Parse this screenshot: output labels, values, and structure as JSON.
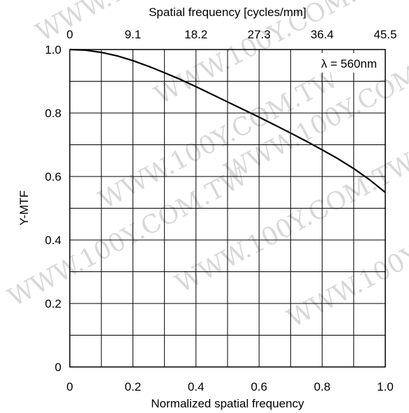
{
  "chart_data": {
    "type": "line",
    "xlabel": "Normalized spatial frequency",
    "ylabel": "Y-MTF",
    "x2label": "Spatial frequency [cycles/mm]",
    "xlim": [
      0,
      1.0
    ],
    "ylim": [
      0,
      1.0
    ],
    "x_ticks": [
      "0",
      "0.2",
      "0.4",
      "0.6",
      "0.8",
      "1.0"
    ],
    "y_ticks": [
      "0",
      "0.2",
      "0.4",
      "0.6",
      "0.8",
      "1.0"
    ],
    "x2_ticks": [
      "0",
      "9.1",
      "18.2",
      "27.3",
      "36.4",
      "45.5"
    ],
    "grid": true,
    "grid_step_x": 0.1,
    "grid_step_y": 0.1,
    "annotation": "λ = 560nm",
    "annotation_position": "top-right",
    "watermark": "WWW.100Y.COM.TW",
    "series": [
      {
        "x": [
          0,
          0.05,
          0.1,
          0.15,
          0.2,
          0.25,
          0.3,
          0.35,
          0.4,
          0.45,
          0.5,
          0.55,
          0.6,
          0.65,
          0.7,
          0.75,
          0.8,
          0.85,
          0.9,
          0.95,
          1.0
        ],
        "values": [
          1.0,
          0.998,
          0.991,
          0.98,
          0.965,
          0.947,
          0.927,
          0.906,
          0.883,
          0.859,
          0.835,
          0.811,
          0.787,
          0.762,
          0.737,
          0.711,
          0.684,
          0.656,
          0.625,
          0.59,
          0.55
        ]
      }
    ]
  }
}
